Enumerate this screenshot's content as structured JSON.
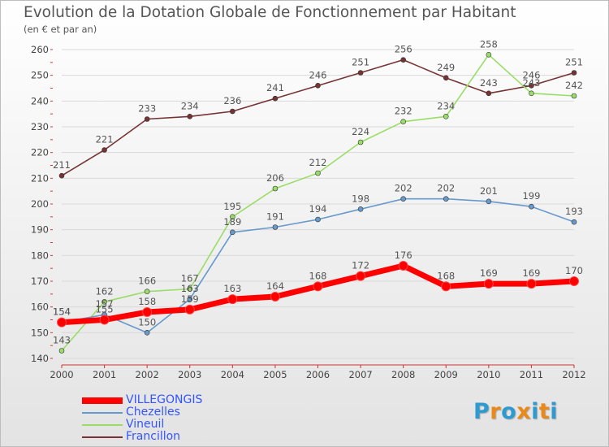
{
  "logo_text": "Proxiti",
  "colors": {
    "villegongis": "#ff0000",
    "chezelles": "#6699cc",
    "vineuil": "#99dd66",
    "francillon": "#773333",
    "grid": "#d9d9d9",
    "axis_text": "#444444",
    "label_text": "#555555",
    "logo": [
      "#2e9ad0",
      "#e8891a",
      "#2e9ad0",
      "#e8891a",
      "#2e9ad0",
      "#e8891a",
      "#2e9ad0"
    ]
  },
  "chart_data": {
    "type": "line",
    "title": "Evolution de la Dotation Globale de Fonctionnement par Habitant",
    "subtitle": "(en € et par an)",
    "xlabel": "",
    "ylabel": "",
    "ylim": [
      140,
      260
    ],
    "yticks": [
      140,
      150,
      160,
      170,
      180,
      190,
      200,
      210,
      220,
      230,
      240,
      250,
      260
    ],
    "grid": true,
    "legend_position": "bottom-left",
    "categories": [
      "2000",
      "2001",
      "2002",
      "2003",
      "2004",
      "2005",
      "2006",
      "2007",
      "2008",
      "2009",
      "2010",
      "2011",
      "2012"
    ],
    "series": [
      {
        "key": "francillon",
        "name": "Francillon",
        "values": [
          211,
          221,
          233,
          234,
          236,
          241,
          246,
          251,
          256,
          249,
          243,
          246,
          251
        ]
      },
      {
        "key": "vineuil",
        "name": "Vineuil",
        "values": [
          143,
          162,
          166,
          167,
          195,
          206,
          212,
          224,
          232,
          234,
          258,
          243,
          242
        ]
      },
      {
        "key": "chezelles",
        "name": "Chezelles",
        "values": [
          154,
          157,
          150,
          163,
          189,
          191,
          194,
          198,
          202,
          202,
          201,
          199,
          193
        ]
      },
      {
        "key": "villegongis",
        "name": "VILLEGONGIS",
        "values": [
          154,
          155,
          158,
          159,
          163,
          164,
          168,
          172,
          176,
          168,
          169,
          169,
          170
        ]
      }
    ],
    "legend_order": [
      "villegongis",
      "chezelles",
      "vineuil",
      "francillon"
    ]
  }
}
